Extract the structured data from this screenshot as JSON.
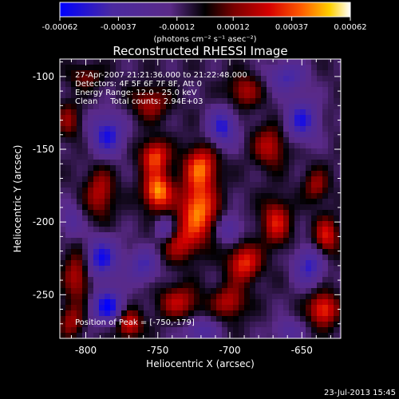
{
  "colorbar": {
    "tick_labels": [
      "-0.00062",
      "-0.00037",
      "-0.00012",
      "0.00012",
      "0.00037",
      "0.00062"
    ],
    "tick_values": [
      -0.00062,
      -0.00037,
      -0.00012,
      0.00012,
      0.00037,
      0.00062
    ],
    "range": [
      -0.00062,
      0.00062
    ],
    "unit_label": "(photons cm⁻² s⁻¹ asec⁻²)",
    "colors": [
      "#0000ff",
      "#4b2aa0",
      "#5a2a88",
      "#000000",
      "#7a0000",
      "#d40000",
      "#ff5a00",
      "#ffd000",
      "#ffffff"
    ]
  },
  "chart_data": {
    "type": "heatmap",
    "title": "Reconstructed RHESSI Image",
    "xlabel": "Heliocentric X (arcsec)",
    "ylabel": "Heliocentric Y (arcsec)",
    "xlim": [
      -818,
      -623
    ],
    "ylim": [
      -280,
      -88
    ],
    "xticks": [
      -800,
      -750,
      -700,
      -650
    ],
    "xtick_labels": [
      "-800",
      "-750",
      "-700",
      "-650"
    ],
    "yticks": [
      -250,
      -200,
      -150,
      -100
    ],
    "ytick_labels": [
      "-250",
      "-200",
      "-150",
      "-100"
    ],
    "peak": {
      "x": -750,
      "y": -179
    },
    "annotations": [
      "27-Apr-2007 21:21:36.000 to 21:22:48.000",
      "Detectors: 4F 5F 6F 7F 8F, Att 0",
      "Energy Range: 12.0 - 25.0 keV",
      "Clean     Total counts: 2.94E+03"
    ],
    "peak_label": "Position of Peak = [-750,-179]",
    "grid": false
  },
  "footer": {
    "date": "23-Jul-2013 15:45"
  }
}
